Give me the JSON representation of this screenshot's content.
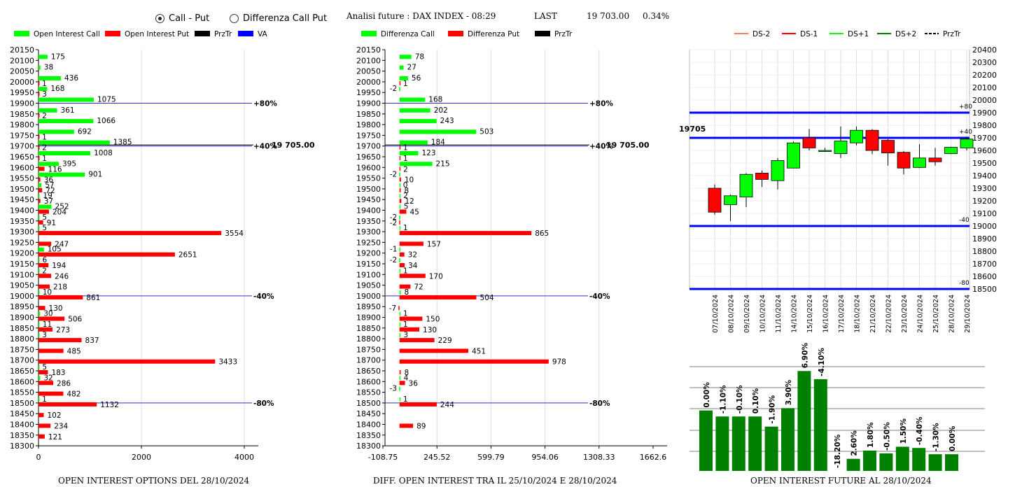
{
  "header": {
    "radio_call_put": "Call - Put",
    "radio_diff": "Differenza Call Put",
    "title": "Analisi future : DAX INDEX - 08:29",
    "last_label": "LAST",
    "last_value": "19 703.00",
    "change": "0.34%"
  },
  "colors": {
    "green": "#00ff00",
    "red": "#ff0000",
    "black": "#000000",
    "blue": "#0000ff",
    "darkgreen": "#008000",
    "grid": "#bbbbbb"
  },
  "chart_data": [
    {
      "type": "bar",
      "title": "OPEN INTEREST OPTIONS DEL 28/10/2024",
      "legend": [
        "Open Interest Call",
        "Open Interest Put",
        "PrzTr",
        "VA"
      ],
      "strikes": [
        20150,
        20100,
        20050,
        20000,
        19950,
        19900,
        19850,
        19800,
        19750,
        19700,
        19650,
        19600,
        19550,
        19500,
        19450,
        19400,
        19350,
        19300,
        19250,
        19200,
        19150,
        19100,
        19050,
        19000,
        18950,
        18900,
        18850,
        18800,
        18750,
        18700,
        18650,
        18600,
        18550,
        18500,
        18450,
        18400,
        18350,
        18300
      ],
      "call": [
        null,
        175,
        38,
        436,
        168,
        1075,
        361,
        1066,
        692,
        1385,
        1008,
        395,
        901,
        57,
        19,
        252,
        5,
        5,
        null,
        105,
        6,
        2,
        null,
        10,
        null,
        30,
        11,
        3,
        null,
        null,
        5,
        32,
        null,
        1,
        null,
        null,
        null,
        null
      ],
      "put": [
        null,
        null,
        null,
        1,
        3,
        null,
        2,
        null,
        1,
        2,
        1,
        116,
        36,
        72,
        37,
        204,
        91,
        3554,
        247,
        2651,
        194,
        246,
        218,
        861,
        130,
        506,
        273,
        837,
        485,
        3433,
        183,
        286,
        482,
        1132,
        102,
        234,
        121,
        null
      ],
      "xticks": [
        0,
        2000,
        4000
      ],
      "xmax": 4000,
      "levels": [
        {
          "strike": 19900,
          "label": "+80%"
        },
        {
          "strike": 19700,
          "label": "+40%"
        },
        {
          "strike": 19000,
          "label": "-40%"
        },
        {
          "strike": 18500,
          "label": "-80%"
        }
      ],
      "price_label": "19 705.00",
      "price": 19705
    },
    {
      "type": "bar",
      "title": "DIFF. OPEN INTEREST TRA IL 25/10/2024 E 28/10/2024",
      "legend": [
        "Differenza Call",
        "Differenza Put",
        "PrzTr"
      ],
      "strikes": [
        20150,
        20100,
        20050,
        20000,
        19950,
        19900,
        19850,
        19800,
        19750,
        19700,
        19650,
        19600,
        19550,
        19500,
        19450,
        19400,
        19350,
        19300,
        19250,
        19200,
        19150,
        19100,
        19050,
        19000,
        18950,
        18900,
        18850,
        18800,
        18750,
        18700,
        18650,
        18600,
        18550,
        18500,
        18450,
        18400,
        18350,
        18300
      ],
      "call": [
        null,
        78,
        27,
        56,
        -2,
        168,
        202,
        243,
        503,
        184,
        123,
        215,
        -2,
        0,
        2,
        5,
        -2,
        1,
        null,
        -1,
        -2,
        1,
        null,
        8,
        null,
        1,
        1,
        3,
        null,
        null,
        null,
        4,
        -3,
        1,
        null,
        null,
        null,
        null
      ],
      "put": [
        null,
        null,
        null,
        1,
        null,
        null,
        null,
        null,
        null,
        1,
        1,
        2,
        10,
        8,
        12,
        45,
        -2,
        865,
        157,
        32,
        34,
        170,
        72,
        504,
        -7,
        150,
        130,
        229,
        451,
        978,
        8,
        36,
        null,
        244,
        null,
        89,
        null,
        null
      ],
      "xticks": [
        "-108.75",
        "245.52",
        "599.79",
        "954.06",
        "1308.33",
        "1662.6"
      ],
      "xmin": -108.75,
      "xmax": 1662.6,
      "levels": [
        {
          "strike": 19900,
          "label": "+80%"
        },
        {
          "strike": 19700,
          "label": "+40%"
        },
        {
          "strike": 19000,
          "label": "-40%"
        },
        {
          "strike": 18500,
          "label": "-80%"
        }
      ],
      "price_label": "19 705.00",
      "price": 19705
    },
    {
      "type": "candlestick",
      "legend": [
        "DS-2",
        "DS-1",
        "DS+1",
        "DS+2",
        "PrzTr"
      ],
      "dates": [
        "07/10/2024",
        "08/10/2024",
        "09/10/2024",
        "10/10/2024",
        "11/10/2024",
        "14/10/2024",
        "15/10/2024",
        "16/10/2024",
        "17/10/2024",
        "18/10/2024",
        "21/10/2024",
        "22/10/2024",
        "23/10/2024",
        "24/10/2024",
        "25/10/2024",
        "28/10/2024",
        "29/10/2024"
      ],
      "open": [
        19300,
        19170,
        19230,
        19420,
        19360,
        19460,
        19700,
        19600,
        19575,
        19660,
        19760,
        19680,
        19585,
        19465,
        19540,
        19575,
        19620
      ],
      "close": [
        19110,
        19240,
        19410,
        19370,
        19520,
        19660,
        19620,
        19600,
        19675,
        19760,
        19600,
        19580,
        19460,
        19540,
        19510,
        19625,
        19690
      ],
      "high": [
        19330,
        19250,
        19420,
        19440,
        19540,
        19670,
        19770,
        19620,
        19790,
        19790,
        19770,
        19690,
        19595,
        19650,
        19620,
        19630,
        19710
      ],
      "low": [
        19090,
        19040,
        19150,
        19310,
        19290,
        19460,
        19600,
        19590,
        19540,
        19640,
        19570,
        19480,
        19410,
        19460,
        19480,
        19570,
        19600
      ],
      "ylim": [
        18500,
        20400
      ],
      "yticks": [
        20400,
        20300,
        20200,
        20100,
        20000,
        19900,
        19800,
        19700,
        19600,
        19500,
        19400,
        19300,
        19200,
        19100,
        19000,
        18900,
        18800,
        18700,
        18600,
        18500
      ],
      "levels": [
        {
          "value": 19900,
          "label": "+80"
        },
        {
          "value": 19700,
          "label": "+40"
        },
        {
          "value": 19000,
          "label": "-40"
        },
        {
          "value": 18500,
          "label": "-80"
        }
      ],
      "price_label": "19705",
      "price": 19705
    },
    {
      "type": "bar",
      "title": "OPEN INTEREST FUTURE AL 28/10/2024",
      "values": [
        58.0,
        52.2,
        52.2,
        52.2,
        42.5,
        60.2,
        95.8,
        88.0,
        0,
        11.6,
        19.5,
        16.8,
        23.2,
        22.0,
        16.0,
        16.0
      ],
      "labels": [
        "0.00%",
        "-1.10%",
        "-0.10%",
        "0.10%",
        "-1.90%",
        "3.90%",
        "6.90%",
        "-4.10%",
        "-18.20%",
        "2.60%",
        "1.80%",
        "-0.50%",
        "1.50%",
        "-0.40%",
        "-1.30%",
        "0.00%"
      ]
    }
  ]
}
